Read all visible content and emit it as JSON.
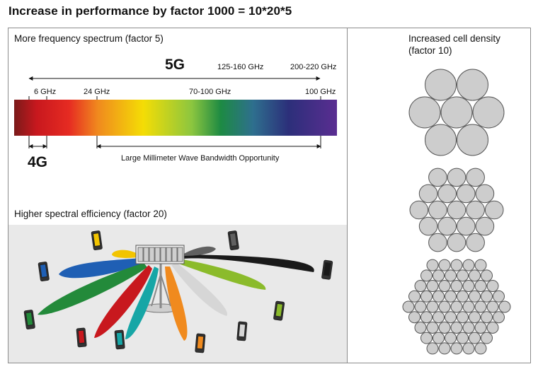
{
  "title": "Increase in performance by factor 1000 = 10*20*5",
  "spectrum": {
    "heading": "More frequency spectrum (factor 5)",
    "label_5g": "5G",
    "label_4g": "4G",
    "band_125": "125-160 GHz",
    "band_200": "200-220 GHz",
    "tick_6": "6 GHz",
    "tick_24": "24 GHz",
    "tick_70": "70-100 GHz",
    "tick_100": "100 GHz",
    "mmwave": "Large Millimeter Wave Bandwidth Opportunity"
  },
  "efficiency": {
    "heading": "Higher spectral efficiency (factor 20)",
    "beam_colors": [
      "#f2c400",
      "#1f5fb4",
      "#238a3a",
      "#c8181e",
      "#17a6a6",
      "#f08a1e",
      "#d6d6d6",
      "#8bbb2b",
      "#1a1a1a",
      "#606060"
    ]
  },
  "density": {
    "heading_line1": "Increased cell density",
    "heading_line2": "(factor 10)"
  }
}
